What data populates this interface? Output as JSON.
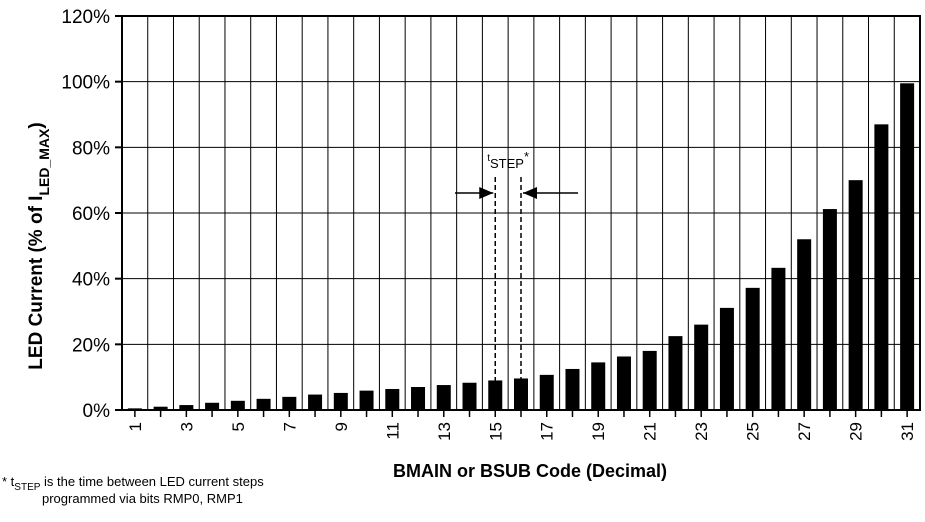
{
  "chart_data": {
    "type": "bar",
    "categories": [
      1,
      2,
      3,
      4,
      5,
      6,
      7,
      8,
      9,
      10,
      11,
      12,
      13,
      14,
      15,
      16,
      17,
      18,
      19,
      20,
      21,
      22,
      23,
      24,
      25,
      26,
      27,
      28,
      29,
      30,
      31
    ],
    "tick_labels": [
      "1",
      "3",
      "5",
      "7",
      "9",
      "11",
      "13",
      "15",
      "17",
      "19",
      "21",
      "23",
      "25",
      "27",
      "29",
      "31"
    ],
    "values": [
      0.5,
      1,
      1.5,
      2.2,
      2.8,
      3.4,
      4,
      4.7,
      5.2,
      5.9,
      6.4,
      7,
      7.6,
      8.3,
      9,
      9.6,
      10.7,
      12.5,
      14.5,
      16.3,
      18,
      22.5,
      26,
      31.1,
      37.2,
      43.3,
      52,
      61.2,
      70,
      87,
      99.5
    ],
    "ylim": [
      0,
      120
    ],
    "yticks": [
      0,
      20,
      40,
      60,
      80,
      100,
      120
    ],
    "ytick_labels": [
      "0%",
      "20%",
      "40%",
      "60%",
      "80%",
      "100%",
      "120%"
    ],
    "ylabel": "LED Current (% of I",
    "ylabel_sub": "LED_MAX",
    "ylabel_end": ")",
    "xlabel": "BMAIN or BSUB Code (Decimal)",
    "grid": true,
    "annotation": {
      "label": "t",
      "label_sub": "STEP",
      "label_end": "*",
      "between": [
        15,
        16
      ]
    },
    "footnote": {
      "prefix": "* t",
      "sub": "STEP",
      "line1_rest": " is the time between LED current steps",
      "line2": "programmed via bits RMP0, RMP1"
    }
  }
}
